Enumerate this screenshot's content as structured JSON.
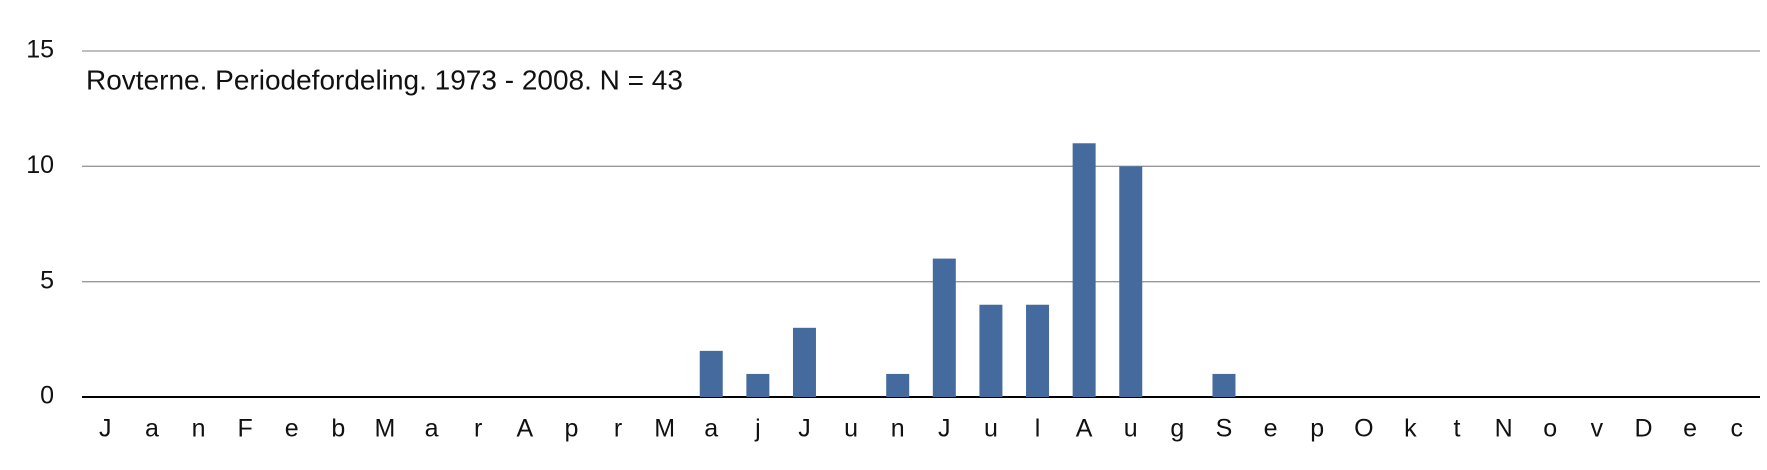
{
  "chart_data": {
    "type": "bar",
    "title": "Rovterne. Periodefordeling. 1973 - 2008. N = 43",
    "categories": [
      "J",
      "a",
      "n",
      "F",
      "e",
      "b",
      "M",
      "a",
      "r",
      "A",
      "p",
      "r",
      "M",
      "a",
      "j",
      "J",
      "u",
      "n",
      "J",
      "u",
      "l",
      "A",
      "u",
      "g",
      "S",
      "e",
      "p",
      "O",
      "k",
      "t",
      "N",
      "o",
      "v",
      "D",
      "e",
      "c"
    ],
    "values": [
      0,
      0,
      0,
      0,
      0,
      0,
      0,
      0,
      0,
      0,
      0,
      0,
      0,
      2,
      1,
      3,
      0,
      1,
      6,
      4,
      4,
      11,
      10,
      0,
      1,
      0,
      0,
      0,
      0,
      0,
      0,
      0,
      0,
      0,
      0,
      0
    ],
    "color": "#456b9e",
    "ylim": [
      0,
      15
    ],
    "yticks": [
      0,
      5,
      10,
      15
    ],
    "grid": true
  }
}
